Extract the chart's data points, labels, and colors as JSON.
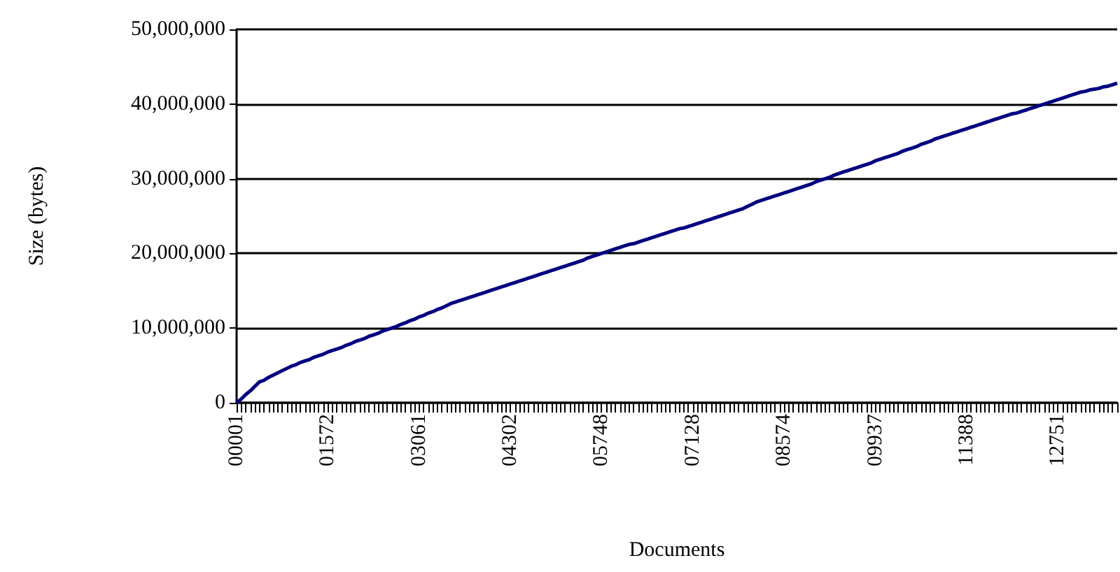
{
  "chart_data": {
    "type": "line",
    "xlabel": "Documents",
    "ylabel": "Size (bytes)",
    "categories": [
      "00001",
      null,
      null,
      null,
      null,
      null,
      null,
      null,
      null,
      null,
      null,
      null,
      null,
      null,
      null,
      null,
      null,
      null,
      null,
      null,
      "01572",
      null,
      null,
      null,
      null,
      null,
      null,
      null,
      null,
      null,
      null,
      null,
      null,
      null,
      null,
      null,
      null,
      null,
      null,
      null,
      "03061",
      null,
      null,
      null,
      null,
      null,
      null,
      null,
      null,
      null,
      null,
      null,
      null,
      null,
      null,
      null,
      null,
      null,
      null,
      null,
      "04302",
      null,
      null,
      null,
      null,
      null,
      null,
      null,
      null,
      null,
      null,
      null,
      null,
      null,
      null,
      null,
      null,
      null,
      null,
      null,
      "05748",
      null,
      null,
      null,
      null,
      null,
      null,
      null,
      null,
      null,
      null,
      null,
      null,
      null,
      null,
      null,
      null,
      null,
      null,
      null,
      "07128",
      null,
      null,
      null,
      null,
      null,
      null,
      null,
      null,
      null,
      null,
      null,
      null,
      null,
      null,
      null,
      null,
      null,
      null,
      null,
      "08574",
      null,
      null,
      null,
      null,
      null,
      null,
      null,
      null,
      null,
      null,
      null,
      null,
      null,
      null,
      null,
      null,
      null,
      null,
      null,
      "09937",
      null,
      null,
      null,
      null,
      null,
      null,
      null,
      null,
      null,
      null,
      null,
      null,
      null,
      null,
      null,
      null,
      null,
      null,
      null,
      "11388",
      null,
      null,
      null,
      null,
      null,
      null,
      null,
      null,
      null,
      null,
      null,
      null,
      null,
      null,
      null,
      null,
      null,
      null,
      null,
      "12751",
      null,
      null,
      null,
      null,
      null,
      null,
      null,
      null,
      null,
      null,
      null,
      null,
      null
    ],
    "series": [
      {
        "color": "#000080",
        "values": [
          0,
          500000,
          1100000,
          1600000,
          2200000,
          2800000,
          3000000,
          3400000,
          3700000,
          4000000,
          4300000,
          4600000,
          4900000,
          5100000,
          5400000,
          5600000,
          5800000,
          6100000,
          6300000,
          6500000,
          6800000,
          7000000,
          7200000,
          7400000,
          7700000,
          7900000,
          8200000,
          8400000,
          8600000,
          8900000,
          9100000,
          9300000,
          9600000,
          9800000,
          10000000,
          10200000,
          10500000,
          10700000,
          11000000,
          11200000,
          11500000,
          11700000,
          12000000,
          12200000,
          12500000,
          12700000,
          13000000,
          13300000,
          13500000,
          13700000,
          13900000,
          14100000,
          14300000,
          14500000,
          14700000,
          14900000,
          15100000,
          15300000,
          15500000,
          15700000,
          15900000,
          16100000,
          16300000,
          16500000,
          16700000,
          16900000,
          17100000,
          17300000,
          17500000,
          17700000,
          17900000,
          18100000,
          18300000,
          18500000,
          18700000,
          18900000,
          19100000,
          19400000,
          19600000,
          19800000,
          20000000,
          20200000,
          20400000,
          20600000,
          20800000,
          21000000,
          21200000,
          21300000,
          21500000,
          21700000,
          21900000,
          22100000,
          22300000,
          22500000,
          22700000,
          22900000,
          23100000,
          23300000,
          23400000,
          23600000,
          23800000,
          24000000,
          24200000,
          24400000,
          24600000,
          24800000,
          25000000,
          25200000,
          25400000,
          25600000,
          25800000,
          26000000,
          26300000,
          26600000,
          26900000,
          27100000,
          27300000,
          27500000,
          27700000,
          27900000,
          28100000,
          28300000,
          28500000,
          28700000,
          28900000,
          29100000,
          29300000,
          29600000,
          29800000,
          30000000,
          30200000,
          30500000,
          30700000,
          30900000,
          31100000,
          31300000,
          31500000,
          31700000,
          31900000,
          32100000,
          32400000,
          32600000,
          32800000,
          33000000,
          33200000,
          33400000,
          33700000,
          33900000,
          34100000,
          34300000,
          34600000,
          34800000,
          35000000,
          35300000,
          35500000,
          35700000,
          35900000,
          36100000,
          36300000,
          36500000,
          36700000,
          36900000,
          37100000,
          37300000,
          37500000,
          37700000,
          37900000,
          38100000,
          38300000,
          38500000,
          38700000,
          38800000,
          39000000,
          39200000,
          39400000,
          39600000,
          39800000,
          40000000,
          40200000,
          40400000,
          40600000,
          40800000,
          41000000,
          41200000,
          41400000,
          41600000,
          41700000,
          41900000,
          42000000,
          42100000,
          42300000,
          42400000,
          42600000,
          42800000
        ]
      }
    ],
    "ylim": [
      0,
      50000000
    ],
    "yticks": [
      0,
      {
        "value": 10000000,
        "label": "10,000,000"
      },
      {
        "value": 20000000,
        "label": "20,000,000"
      },
      {
        "value": 30000000,
        "label": "30,000,000"
      },
      {
        "value": 40000000,
        "label": "40,000,000"
      },
      {
        "value": 50000000,
        "label": "50,000,000"
      }
    ],
    "grid": "y",
    "marker": "none",
    "line_style": "solid"
  }
}
